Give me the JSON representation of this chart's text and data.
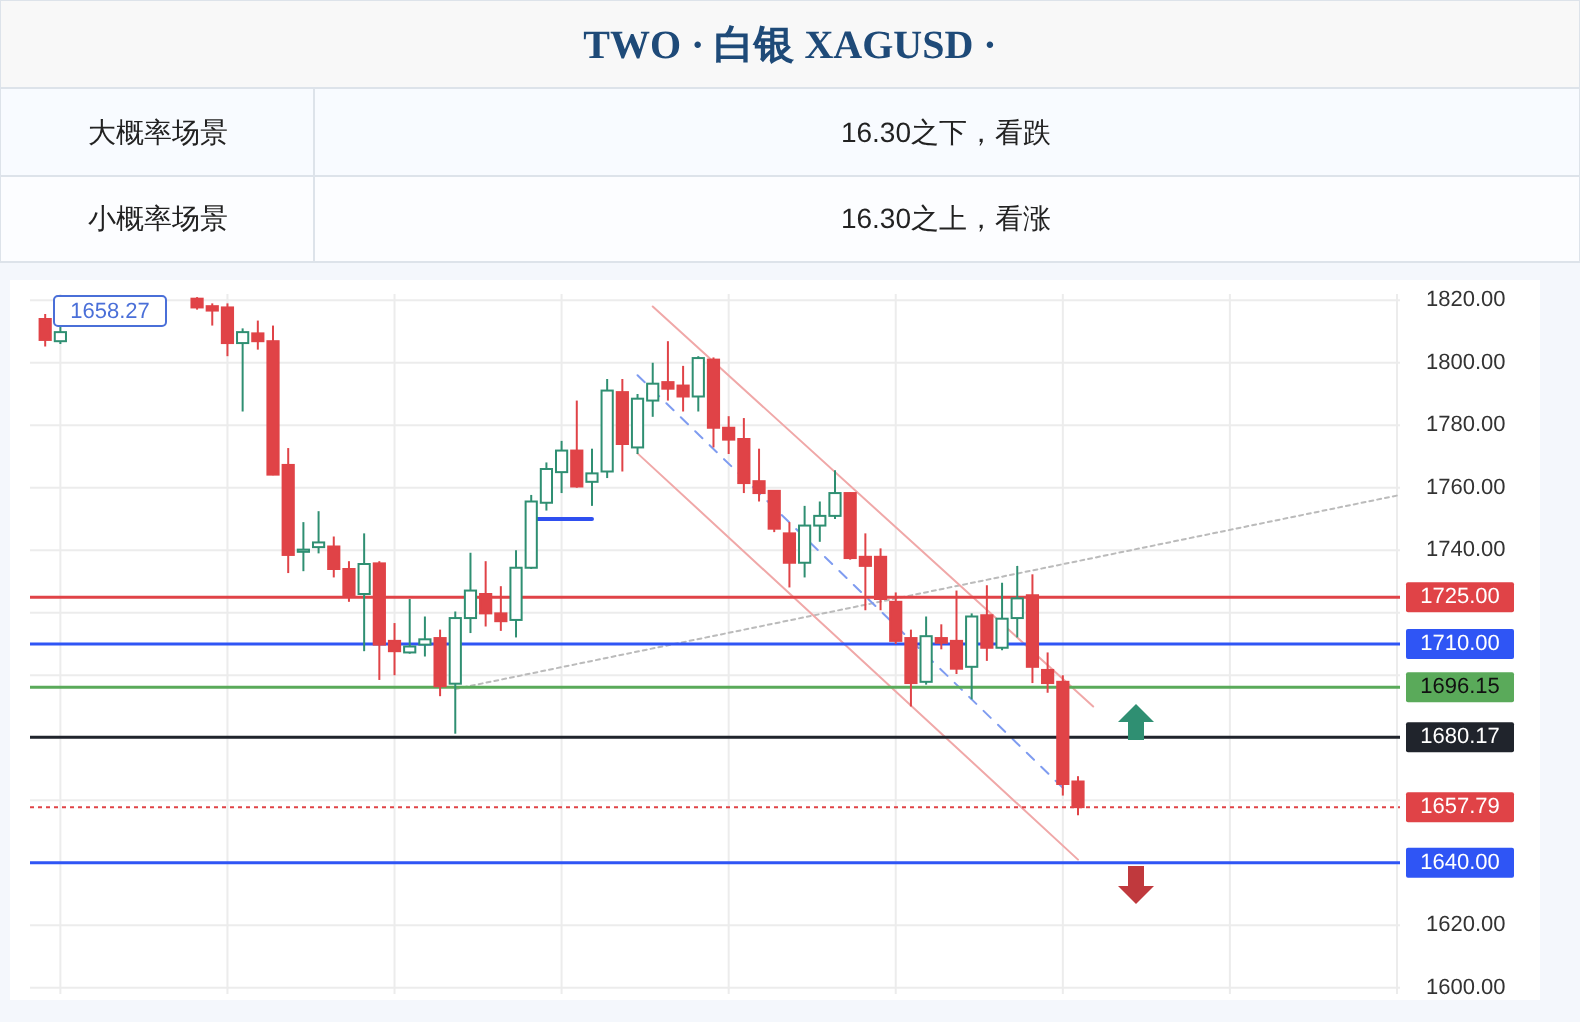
{
  "chart_data": {
    "type": "candlestick",
    "title": "TWO · 白银 XAGUSD ·",
    "annotations": [
      "大概率场景",
      "16.30之下，看跌",
      "小概率场景",
      "16.30之上，看涨",
      "1658.27"
    ],
    "categories": [
      null,
      null,
      null,
      null,
      null,
      null,
      null,
      null,
      null,
      null,
      null,
      null,
      null,
      null,
      null,
      null,
      null,
      null,
      null,
      null,
      null,
      null,
      null,
      null,
      null,
      null,
      null,
      null,
      null,
      null,
      null,
      null,
      null,
      null,
      null,
      null,
      null,
      null,
      null,
      null,
      null,
      null,
      null,
      null,
      null,
      null,
      null,
      null,
      null,
      null,
      null,
      null,
      null,
      null,
      null,
      null,
      null,
      null,
      null,
      null,
      null,
      null,
      null,
      null,
      null,
      null,
      null,
      null,
      null,
      null,
      null,
      null,
      null,
      null,
      null,
      null,
      null,
      null,
      null,
      null,
      null,
      null,
      null,
      null,
      null,
      null,
      null,
      null,
      null,
      null
    ],
    "ohlc": [
      [
        1814.0,
        1815.6,
        1805.2,
        1807.3
      ],
      [
        1806.9,
        1812.0,
        1806.0,
        1809.8
      ],
      null,
      null,
      null,
      null,
      null,
      null,
      null,
      null,
      [
        1820.5,
        1821.0,
        1817.0,
        1817.7
      ],
      [
        1818.1,
        1819.0,
        1811.9,
        1816.7
      ],
      [
        1817.7,
        1819.0,
        1802.1,
        1806.3
      ],
      [
        1806.3,
        1811.0,
        1784.4,
        1809.8
      ],
      [
        1809.4,
        1813.5,
        1804.2,
        1806.9
      ],
      [
        1806.9,
        1811.9,
        1764.0,
        1764.2
      ],
      [
        1767.3,
        1772.7,
        1732.7,
        1738.5
      ],
      [
        1739.5,
        1749.0,
        1733.3,
        1740.2
      ],
      [
        1741.0,
        1752.5,
        1739.0,
        1742.5
      ],
      [
        1741.2,
        1744.4,
        1731.3,
        1734.0
      ],
      [
        1734.0,
        1736.5,
        1723.5,
        1725.6
      ],
      [
        1726.0,
        1745.4,
        1707.7,
        1735.6
      ],
      [
        1735.8,
        1736.5,
        1698.5,
        1709.8
      ],
      [
        1711.0,
        1716.7,
        1700.0,
        1707.7
      ],
      [
        1707.3,
        1724.4,
        1706.9,
        1709.2
      ],
      [
        1709.8,
        1718.8,
        1706.0,
        1711.5
      ],
      [
        1711.9,
        1714.6,
        1693.3,
        1696.5
      ],
      [
        1697.3,
        1720.4,
        1681.3,
        1718.3
      ],
      [
        1718.3,
        1739.2,
        1713.5,
        1727.1
      ],
      [
        1726.0,
        1736.5,
        1715.6,
        1719.8
      ],
      [
        1719.8,
        1728.5,
        1714.2,
        1717.3
      ],
      [
        1717.7,
        1740.0,
        1712.1,
        1734.4
      ],
      [
        1734.4,
        1757.7,
        1734.0,
        1755.6
      ],
      [
        1755.2,
        1768.1,
        1752.7,
        1766.0
      ],
      [
        1765.0,
        1775.0,
        1758.3,
        1771.9
      ],
      [
        1771.9,
        1787.9,
        1760.0,
        1760.4
      ],
      [
        1761.9,
        1772.5,
        1754.2,
        1764.6
      ],
      [
        1765.2,
        1794.8,
        1763.1,
        1791.1
      ],
      [
        1790.6,
        1794.8,
        1765.2,
        1774.0
      ],
      [
        1772.9,
        1790.0,
        1770.8,
        1788.5
      ],
      [
        1787.9,
        1800.0,
        1782.7,
        1793.3
      ],
      [
        1793.8,
        1806.9,
        1787.9,
        1791.7
      ],
      [
        1792.7,
        1799.0,
        1784.4,
        1789.2
      ],
      [
        1789.2,
        1802.1,
        1784.4,
        1801.5
      ],
      [
        1801.0,
        1801.7,
        1772.9,
        1779.2
      ],
      [
        1779.2,
        1782.9,
        1770.8,
        1775.4
      ],
      [
        1775.6,
        1782.3,
        1758.3,
        1761.5
      ],
      [
        1762.1,
        1772.5,
        1755.6,
        1758.3
      ],
      [
        1759.0,
        1759.0,
        1745.8,
        1746.9
      ],
      [
        1745.4,
        1749.0,
        1728.1,
        1736.0
      ],
      [
        1736.0,
        1754.2,
        1731.3,
        1747.9
      ],
      [
        1747.9,
        1755.6,
        1742.7,
        1751.0
      ],
      [
        1751.0,
        1765.6,
        1750.0,
        1758.3
      ],
      [
        1758.3,
        1758.5,
        1737.0,
        1737.5
      ],
      [
        1737.9,
        1745.4,
        1720.8,
        1735.0
      ],
      [
        1737.9,
        1740.6,
        1720.8,
        1724.4
      ],
      [
        1723.5,
        1726.5,
        1710.0,
        1711.0
      ],
      [
        1711.9,
        1714.6,
        1690.0,
        1697.5
      ],
      [
        1697.9,
        1718.8,
        1697.0,
        1712.5
      ],
      [
        1711.9,
        1716.3,
        1708.3,
        1710.4
      ],
      [
        1711.0,
        1727.1,
        1700.4,
        1702.1
      ],
      [
        1702.7,
        1719.8,
        1692.3,
        1718.8
      ],
      [
        1719.2,
        1728.8,
        1704.6,
        1708.8
      ],
      [
        1708.8,
        1729.6,
        1708.0,
        1718.1
      ],
      [
        1718.3,
        1735.0,
        1712.1,
        1724.6
      ],
      [
        1725.6,
        1732.3,
        1697.5,
        1702.7
      ],
      [
        1701.7,
        1707.3,
        1694.4,
        1697.5
      ],
      [
        1697.9,
        1700.0,
        1661.5,
        1665.2
      ],
      [
        1666.0,
        1667.7,
        1655.2,
        1657.8
      ],
      null,
      null,
      null,
      null,
      null,
      null,
      null,
      null,
      null,
      null,
      null,
      null,
      null,
      null,
      null,
      null,
      null,
      null,
      null,
      null,
      null
    ],
    "series": [
      {
        "type": "line",
        "color": "#bbbbbb",
        "line_style": "dotted",
        "values": [
          null,
          null,
          null,
          null,
          null,
          null,
          null,
          null,
          null,
          null,
          null,
          null,
          null,
          null,
          null,
          null,
          null,
          null,
          null,
          null,
          null,
          null,
          null,
          null,
          null,
          null,
          null,
          1695.6,
          null,
          null,
          null,
          null,
          null,
          null,
          null,
          null,
          null,
          null,
          null,
          null,
          null,
          null,
          null,
          null,
          null,
          null,
          null,
          null,
          null,
          null,
          null,
          null,
          null,
          null,
          null,
          null,
          null,
          null,
          null,
          null,
          null,
          null,
          null,
          null,
          null,
          null,
          null,
          null,
          null,
          null,
          null,
          null,
          null,
          null,
          null,
          null,
          null,
          null,
          null,
          null,
          null,
          null,
          null,
          null,
          null,
          null,
          null,
          null,
          null,
          1757.5
        ]
      },
      {
        "type": "line",
        "color": "#7f9cf0",
        "line_style": "dashed",
        "values": [
          null,
          null,
          null,
          null,
          null,
          null,
          null,
          null,
          null,
          null,
          null,
          null,
          null,
          null,
          null,
          null,
          null,
          null,
          null,
          null,
          null,
          null,
          null,
          null,
          null,
          null,
          null,
          null,
          null,
          null,
          null,
          null,
          null,
          null,
          null,
          null,
          null,
          null,
          null,
          1796,
          null,
          null,
          null,
          null,
          null,
          null,
          null,
          null,
          null,
          null,
          null,
          null,
          null,
          null,
          null,
          null,
          null,
          null,
          null,
          null,
          null,
          null,
          null,
          null,
          null,
          null,
          null,
          1664,
          null,
          null,
          null,
          null,
          null,
          null,
          null,
          null,
          null,
          null,
          null,
          null,
          null,
          null,
          null,
          null,
          null,
          null,
          null,
          null,
          null,
          null
        ]
      },
      {
        "type": "line",
        "color": "#f0a8a8",
        "line_style": "solid",
        "values": [
          null,
          null,
          null,
          null,
          null,
          null,
          null,
          null,
          null,
          null,
          null,
          null,
          null,
          null,
          null,
          null,
          null,
          null,
          null,
          null,
          null,
          null,
          null,
          null,
          null,
          null,
          null,
          null,
          null,
          null,
          null,
          null,
          null,
          null,
          null,
          null,
          null,
          null,
          null,
          null,
          1818,
          null,
          null,
          null,
          null,
          null,
          null,
          null,
          null,
          null,
          null,
          null,
          null,
          null,
          null,
          null,
          null,
          null,
          null,
          null,
          null,
          null,
          null,
          null,
          null,
          null,
          null,
          null,
          null,
          1690,
          null,
          null,
          null,
          null,
          null,
          null,
          null,
          null,
          null,
          null,
          null,
          null,
          null,
          null,
          null,
          null,
          null,
          null,
          null,
          null
        ]
      },
      {
        "type": "line",
        "color": "#f0a8a8",
        "line_style": "solid",
        "values": [
          null,
          null,
          null,
          null,
          null,
          null,
          null,
          null,
          null,
          null,
          null,
          null,
          null,
          null,
          null,
          null,
          null,
          null,
          null,
          null,
          null,
          null,
          null,
          null,
          null,
          null,
          null,
          null,
          null,
          null,
          null,
          null,
          null,
          null,
          null,
          null,
          null,
          null,
          null,
          1771,
          null,
          null,
          null,
          null,
          null,
          null,
          null,
          null,
          null,
          null,
          null,
          null,
          null,
          null,
          null,
          null,
          null,
          null,
          null,
          null,
          null,
          null,
          null,
          null,
          null,
          null,
          null,
          null,
          1641,
          null,
          null,
          null,
          null,
          null,
          null,
          null,
          null,
          null,
          null,
          null,
          null,
          null,
          null,
          null,
          null,
          null,
          null,
          null,
          null,
          null
        ]
      },
      {
        "type": "line",
        "color": "#2f4ff0",
        "line_style": "solid",
        "values": [
          null,
          null,
          null,
          null,
          null,
          null,
          null,
          null,
          null,
          null,
          null,
          null,
          null,
          null,
          null,
          null,
          null,
          null,
          null,
          null,
          null,
          null,
          null,
          null,
          null,
          null,
          null,
          null,
          null,
          null,
          null,
          null,
          1750,
          1750,
          1750,
          1750,
          1750,
          null,
          null,
          null,
          null,
          null,
          null,
          null,
          null,
          null,
          null,
          null,
          null,
          null,
          null,
          null,
          null,
          null,
          null,
          null,
          null,
          null,
          null,
          null,
          null,
          null,
          null,
          null,
          null,
          null,
          null,
          null,
          null,
          null,
          null,
          null,
          null,
          null,
          null,
          null,
          null,
          null,
          null,
          null,
          null,
          null,
          null,
          null,
          null,
          null,
          null,
          null,
          null,
          null
        ]
      }
    ],
    "ref_lines": [
      {
        "axis": "y",
        "value": 1725,
        "label": "1725.00",
        "color": "#e04347"
      },
      {
        "axis": "y",
        "value": 1710,
        "label": "1710.00",
        "color": "#2f55f5"
      },
      {
        "axis": "y",
        "value": 1696.15,
        "label": "1696.15",
        "color": "#5aaa5a"
      },
      {
        "axis": "y",
        "value": 1680.17,
        "label": "1680.17",
        "color": "#20242c"
      },
      {
        "axis": "y",
        "value": 1657.79,
        "label": "1657.79",
        "color": "#e04347",
        "line_style": "dotted"
      },
      {
        "axis": "y",
        "value": 1640,
        "label": "1640.00",
        "color": "#2f55f5"
      }
    ],
    "ylim": [
      1598,
      1822
    ],
    "yticks": [
      {
        "value": 1600,
        "label": "1600.00"
      },
      {
        "value": 1620,
        "label": "1620.00"
      },
      {
        "value": 1640,
        "label": null
      },
      {
        "value": 1660,
        "label": null
      },
      {
        "value": 1680,
        "label": null
      },
      {
        "value": 1700,
        "label": null
      },
      {
        "value": 1720,
        "label": null
      },
      {
        "value": 1740,
        "label": "1740.00"
      },
      {
        "value": 1760,
        "label": "1760.00"
      },
      {
        "value": 1780,
        "label": "1780.00"
      },
      {
        "value": 1800,
        "label": "1800.00"
      },
      {
        "value": 1820,
        "label": "1820.00"
      }
    ],
    "grid": true,
    "tick_labels": "y"
  }
}
